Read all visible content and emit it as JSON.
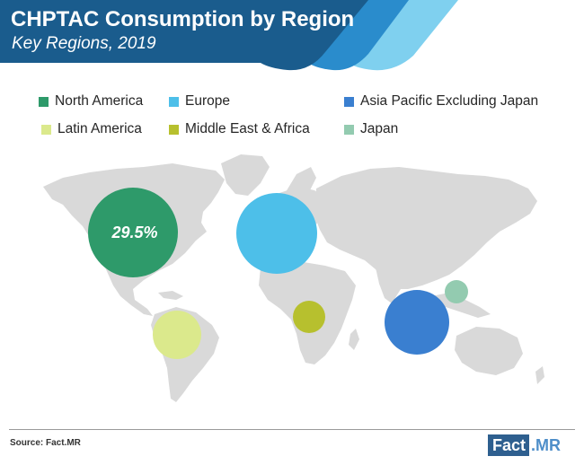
{
  "header": {
    "title": "CHPTAC Consumption by Region",
    "subtitle": "Key Regions, 2019"
  },
  "colors": {
    "header_dark": "#1a5c8d",
    "header_mid": "#2a8ccc",
    "header_light": "#5ab9e5",
    "map_land": "#d9d9d9"
  },
  "chart_data": {
    "type": "bubble-map",
    "title": "CHPTAC Consumption by Region",
    "subtitle": "Key Regions, 2019",
    "legend_placement": "top",
    "series": [
      {
        "name": "North America",
        "color": "#2e9a6a",
        "share_label": "29.5%"
      },
      {
        "name": "Europe",
        "color": "#4dbfe9"
      },
      {
        "name": "Asia Pacific Excluding Japan",
        "color": "#3a7fd0"
      },
      {
        "name": "Latin America",
        "color": "#dbe98c"
      },
      {
        "name": "Middle East & Africa",
        "color": "#b7c02e"
      },
      {
        "name": "Japan",
        "color": "#93cbb0"
      }
    ]
  },
  "footer": {
    "source": "Source: Fact.MR",
    "logo_fact": "Fact",
    "logo_mr": ".MR"
  }
}
